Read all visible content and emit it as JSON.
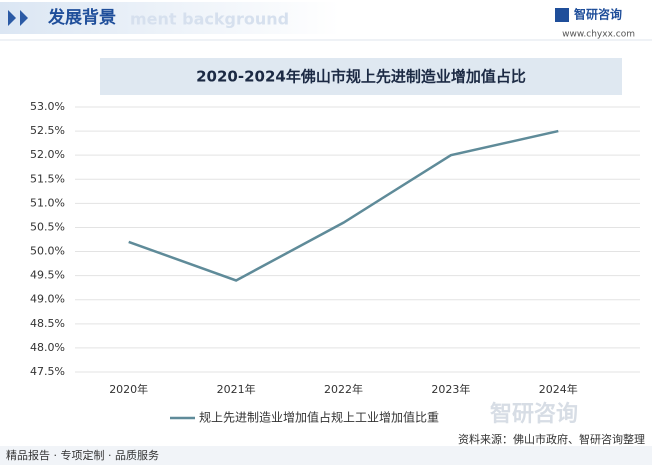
{
  "page": {
    "header": "发展背景",
    "header_en": "ment background",
    "logo": "智研咨询",
    "site": "www.chyxx.com",
    "footer_left": "精品报告 · 专项定制 · 品质服务",
    "source": "资料来源：佛山市政府、智研咨询整理"
  },
  "chart_data": {
    "type": "line",
    "title": "2020-2024年佛山市规上先进制造业增加值占比",
    "categories": [
      "2020年",
      "2021年",
      "2022年",
      "2023年",
      "2024年"
    ],
    "series": [
      {
        "name": "规上先进制造业增加值占规上工业增加值比重",
        "color": "#5f8b99",
        "values": [
          50.2,
          49.4,
          50.6,
          52.0,
          52.5
        ]
      }
    ],
    "ylim": [
      47.5,
      53.0
    ],
    "yticks": [
      {
        "value": 47.5,
        "label": "47.5%"
      },
      {
        "value": 48.0,
        "label": "48.0%"
      },
      {
        "value": 48.5,
        "label": "48.5%"
      },
      {
        "value": 49.0,
        "label": "49.0%"
      },
      {
        "value": 49.5,
        "label": "49.5%"
      },
      {
        "value": 50.0,
        "label": "50.0%"
      },
      {
        "value": 50.5,
        "label": "50.5%"
      },
      {
        "value": 51.0,
        "label": "51.0%"
      },
      {
        "value": 51.5,
        "label": "51.5%"
      },
      {
        "value": 52.0,
        "label": "52.0%"
      },
      {
        "value": 52.5,
        "label": "52.5%"
      },
      {
        "value": 53.0,
        "label": "53.0%"
      }
    ],
    "grid": true,
    "legend": "bottom"
  }
}
